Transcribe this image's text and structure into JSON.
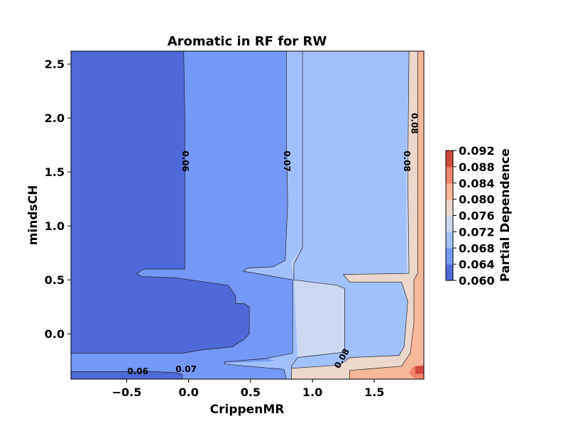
{
  "chart_data": {
    "type": "contour",
    "title": "Aromatic in RF for RW",
    "xlabel": "CrippenMR",
    "ylabel": "mindsCH",
    "xlim": [
      -0.95,
      1.9
    ],
    "ylim": [
      -0.42,
      2.62
    ],
    "xticks": [
      -0.5,
      0.0,
      0.5,
      1.0,
      1.5
    ],
    "xtick_labels": [
      "−0.5",
      "0.0",
      "0.5",
      "1.0",
      "1.5"
    ],
    "yticks": [
      0.0,
      0.5,
      1.0,
      1.5,
      2.0,
      2.5
    ],
    "ytick_labels": [
      "0.0",
      "0.5",
      "1.0",
      "1.5",
      "2.0",
      "2.5"
    ],
    "levels": [
      0.06,
      0.064,
      0.068,
      0.072,
      0.076,
      0.08,
      0.084,
      0.088,
      0.092
    ],
    "colorbar": {
      "label": "Partial Dependence",
      "ticks": [
        "0.060",
        "0.064",
        "0.068",
        "0.072",
        "0.076",
        "0.080",
        "0.084",
        "0.088",
        "0.092"
      ],
      "band_colors": [
        "#4f69d9",
        "#7597f6",
        "#a3c0fe",
        "#ccd8f0",
        "#ebd7cc",
        "#f7b79b",
        "#ee8468",
        "#d0473d"
      ]
    },
    "contour_labels": [
      {
        "text": "0.06",
        "x": -0.03,
        "y": 1.6,
        "rotation": 90
      },
      {
        "text": "0.07",
        "x": 0.79,
        "y": 1.6,
        "rotation": 90
      },
      {
        "text": "0.08",
        "x": 1.76,
        "y": 1.6,
        "rotation": 90
      },
      {
        "text": "0.08",
        "x": 1.82,
        "y": 1.95,
        "rotation": 90
      },
      {
        "text": "0.06",
        "x": -0.41,
        "y": -0.35,
        "rotation": 0
      },
      {
        "text": "0.07",
        "x": -0.02,
        "y": -0.33,
        "rotation": 0
      },
      {
        "text": "0.08",
        "x": 1.24,
        "y": -0.23,
        "rotation": -60
      }
    ],
    "regions": [
      {
        "level_band": 1,
        "fill": "#7597f6",
        "points": [
          [
            -0.95,
            2.62
          ],
          [
            1.9,
            2.62
          ],
          [
            1.9,
            -0.42
          ],
          [
            -0.95,
            -0.42
          ]
        ]
      },
      {
        "level_band": 2,
        "fill": "#a3c0fe",
        "points": [
          [
            0.79,
            2.62
          ],
          [
            1.9,
            2.62
          ],
          [
            1.9,
            -0.42
          ],
          [
            0.79,
            -0.42
          ],
          [
            0.77,
            -0.33
          ],
          [
            0.29,
            -0.28
          ],
          [
            0.29,
            -0.26
          ],
          [
            0.62,
            -0.23
          ],
          [
            0.84,
            -0.18
          ],
          [
            0.84,
            0.5
          ],
          [
            0.55,
            0.56
          ],
          [
            0.44,
            0.58
          ],
          [
            0.48,
            0.61
          ],
          [
            0.68,
            0.62
          ],
          [
            0.78,
            0.68
          ],
          [
            0.8,
            1.2
          ],
          [
            0.79,
            1.8
          ]
        ]
      },
      {
        "level_band": 3,
        "fill": "#ccd8f0",
        "points": [
          [
            0.92,
            2.62
          ],
          [
            1.9,
            2.62
          ],
          [
            1.9,
            -0.42
          ],
          [
            1.0,
            -0.42
          ],
          [
            0.83,
            -0.35
          ],
          [
            1.2,
            -0.3
          ],
          [
            1.72,
            -0.28
          ],
          [
            1.77,
            -0.05
          ],
          [
            1.78,
            0.3
          ],
          [
            1.76,
            0.7
          ],
          [
            1.76,
            1.5
          ],
          [
            1.78,
            2.62
          ],
          [
            1.9,
            2.62
          ],
          [
            1.9,
            2.62
          ],
          [
            0.92,
            2.62
          ],
          [
            0.92,
            0.8
          ],
          [
            0.85,
            0.65
          ],
          [
            0.85,
            0.5
          ],
          [
            1.2,
            0.45
          ],
          [
            1.26,
            0.42
          ],
          [
            1.26,
            -0.17
          ],
          [
            0.88,
            -0.22
          ],
          [
            0.85,
            0.52
          ],
          [
            0.83,
            0.66
          ],
          [
            0.92,
            0.8
          ]
        ]
      },
      {
        "level_band": 4,
        "fill": "#ebd7cc",
        "points": [
          [
            1.78,
            2.62
          ],
          [
            1.9,
            2.62
          ],
          [
            1.9,
            -0.42
          ],
          [
            0.83,
            -0.42
          ],
          [
            0.83,
            -0.32
          ],
          [
            1.22,
            -0.29
          ],
          [
            1.3,
            -0.22
          ],
          [
            1.7,
            -0.2
          ],
          [
            1.74,
            -0.12
          ],
          [
            1.77,
            0.3
          ],
          [
            1.72,
            0.48
          ],
          [
            1.3,
            0.48
          ],
          [
            1.25,
            0.55
          ],
          [
            1.78,
            0.56
          ],
          [
            1.77,
            1.5
          ]
        ]
      },
      {
        "level_band": 5,
        "fill": "#f7b79b",
        "points": [
          [
            1.85,
            2.62
          ],
          [
            1.9,
            2.62
          ],
          [
            1.9,
            -0.42
          ],
          [
            1.3,
            -0.42
          ],
          [
            1.3,
            -0.34
          ],
          [
            1.72,
            -0.3
          ],
          [
            1.79,
            -0.18
          ],
          [
            1.82,
            0.1
          ],
          [
            1.82,
            0.5
          ],
          [
            1.85,
            0.56
          ],
          [
            1.85,
            1.5
          ]
        ]
      },
      {
        "level_band": 6,
        "fill": "#ee8468",
        "points": [
          [
            1.78,
            -0.36
          ],
          [
            1.81,
            -0.31
          ],
          [
            1.9,
            -0.28
          ],
          [
            1.9,
            -0.42
          ],
          [
            1.82,
            -0.41
          ]
        ]
      },
      {
        "level_band": 7,
        "fill": "#d0473d",
        "points": [
          [
            1.83,
            -0.3
          ],
          [
            1.9,
            -0.3
          ],
          [
            1.9,
            -0.37
          ],
          [
            1.83,
            -0.37
          ]
        ]
      },
      {
        "level_band": 0,
        "fill": "#4f69d9",
        "points": [
          [
            -0.95,
            2.62
          ],
          [
            -0.04,
            2.62
          ],
          [
            -0.03,
            2.0
          ],
          [
            -0.03,
            0.6
          ],
          [
            -0.36,
            0.6
          ],
          [
            -0.42,
            0.56
          ],
          [
            -0.38,
            0.53
          ],
          [
            -0.11,
            0.52
          ],
          [
            0.32,
            0.45
          ],
          [
            0.38,
            0.35
          ],
          [
            0.38,
            0.28
          ],
          [
            0.45,
            0.28
          ],
          [
            0.49,
            0.25
          ],
          [
            0.49,
            0.0
          ],
          [
            0.45,
            -0.05
          ],
          [
            0.38,
            -0.1
          ],
          [
            0.36,
            -0.12
          ],
          [
            0.1,
            -0.15
          ],
          [
            -0.05,
            -0.18
          ],
          [
            -0.95,
            -0.18
          ]
        ]
      },
      {
        "level_band": 0,
        "fill": "#4f69d9",
        "points": [
          [
            -0.95,
            -0.35
          ],
          [
            -0.3,
            -0.35
          ],
          [
            -0.1,
            -0.36
          ],
          [
            -0.05,
            -0.38
          ],
          [
            -0.05,
            -0.42
          ],
          [
            -0.95,
            -0.42
          ]
        ]
      },
      {
        "level_band": 1,
        "fill": "#7597f6",
        "points": [
          [
            -0.95,
            -0.18
          ],
          [
            0.3,
            -0.18
          ],
          [
            0.6,
            -0.22
          ],
          [
            0.7,
            -0.25
          ],
          [
            0.3,
            -0.27
          ],
          [
            0.3,
            -0.3
          ],
          [
            0.76,
            -0.32
          ],
          [
            0.6,
            -0.35
          ],
          [
            -0.05,
            -0.35
          ],
          [
            -0.95,
            -0.33
          ]
        ]
      }
    ],
    "isolines": [
      {
        "level": 0.064,
        "points": [
          [
            -0.04,
            2.62
          ],
          [
            -0.03,
            2.0
          ],
          [
            -0.03,
            0.6
          ],
          [
            -0.36,
            0.6
          ],
          [
            -0.42,
            0.56
          ],
          [
            -0.38,
            0.53
          ],
          [
            -0.11,
            0.52
          ],
          [
            0.32,
            0.45
          ],
          [
            0.38,
            0.35
          ],
          [
            0.38,
            0.28
          ],
          [
            0.45,
            0.28
          ],
          [
            0.49,
            0.25
          ],
          [
            0.49,
            0.0
          ],
          [
            0.45,
            -0.05
          ],
          [
            0.38,
            -0.1
          ],
          [
            0.36,
            -0.12
          ],
          [
            0.1,
            -0.15
          ],
          [
            -0.05,
            -0.18
          ],
          [
            -0.95,
            -0.18
          ]
        ]
      },
      {
        "level": 0.068,
        "points": [
          [
            0.79,
            2.62
          ],
          [
            0.79,
            1.8
          ],
          [
            0.8,
            1.2
          ],
          [
            0.78,
            0.68
          ],
          [
            0.68,
            0.62
          ],
          [
            0.48,
            0.61
          ],
          [
            0.44,
            0.58
          ],
          [
            0.55,
            0.56
          ],
          [
            0.84,
            0.5
          ],
          [
            0.84,
            -0.18
          ],
          [
            0.62,
            -0.23
          ],
          [
            0.29,
            -0.26
          ],
          [
            0.29,
            -0.28
          ],
          [
            0.77,
            -0.33
          ],
          [
            0.79,
            -0.42
          ]
        ]
      },
      {
        "level": 0.072,
        "points": [
          [
            0.92,
            2.62
          ],
          [
            0.92,
            0.8
          ],
          [
            0.85,
            0.65
          ],
          [
            0.85,
            0.5
          ],
          [
            1.2,
            0.45
          ],
          [
            1.26,
            0.42
          ],
          [
            1.26,
            -0.17
          ],
          [
            0.88,
            -0.22
          ],
          [
            0.83,
            -0.3
          ],
          [
            0.83,
            -0.42
          ]
        ]
      },
      {
        "level": 0.076,
        "points": [
          [
            1.78,
            2.62
          ],
          [
            1.77,
            1.5
          ],
          [
            1.78,
            0.56
          ],
          [
            1.25,
            0.55
          ],
          [
            1.3,
            0.48
          ],
          [
            1.72,
            0.48
          ],
          [
            1.77,
            0.3
          ],
          [
            1.74,
            -0.12
          ],
          [
            1.7,
            -0.2
          ],
          [
            1.3,
            -0.22
          ],
          [
            1.22,
            -0.29
          ],
          [
            0.83,
            -0.32
          ]
        ]
      },
      {
        "level": 0.08,
        "points": [
          [
            1.85,
            2.62
          ],
          [
            1.85,
            1.5
          ],
          [
            1.85,
            0.56
          ],
          [
            1.82,
            0.5
          ],
          [
            1.82,
            0.1
          ],
          [
            1.79,
            -0.18
          ],
          [
            1.72,
            -0.3
          ],
          [
            1.3,
            -0.34
          ],
          [
            1.3,
            -0.42
          ]
        ]
      },
      {
        "level": 0.064,
        "points": [
          [
            -0.95,
            -0.35
          ],
          [
            -0.3,
            -0.35
          ],
          [
            -0.1,
            -0.36
          ],
          [
            -0.05,
            -0.38
          ],
          [
            -0.05,
            -0.42
          ]
        ]
      }
    ]
  }
}
